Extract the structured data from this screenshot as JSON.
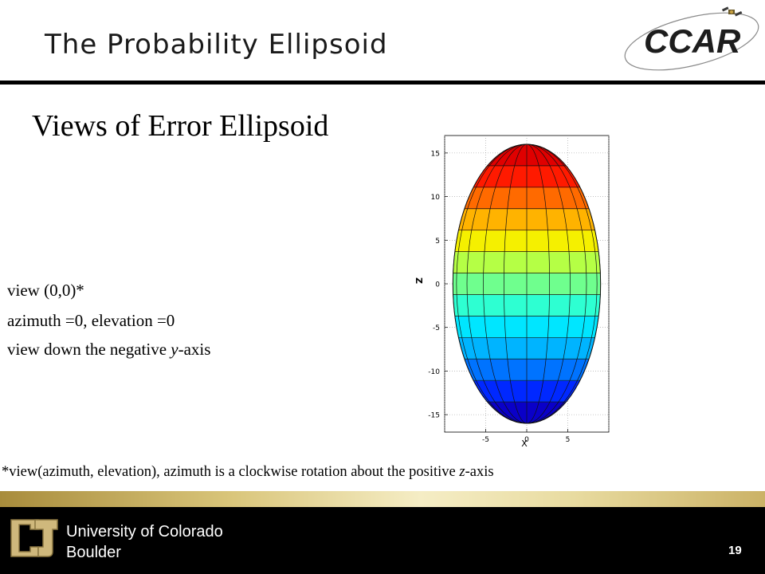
{
  "header": {
    "title": "The Probability Ellipsoid",
    "logo_text": "CCAR"
  },
  "slide": {
    "heading": "Views of Error Ellipsoid",
    "caption": {
      "line1": "view (0,0)*",
      "line2": "azimuth =0, elevation =0",
      "line3_prefix": "view down the negative ",
      "line3_italic": "y",
      "line3_suffix": "-axis"
    },
    "footnote": {
      "prefix": "*view(azimuth, elevation), azimuth is a clockwise rotation about the positive ",
      "italic": "z",
      "suffix": "-axis"
    }
  },
  "footer": {
    "university_line1": "University of Colorado",
    "university_line2": "Boulder",
    "page_number": "19"
  },
  "chart_data": {
    "type": "surface",
    "xlabel": "X",
    "ylabel": "Z",
    "x_ticks": [
      "-5",
      "0",
      "5"
    ],
    "y_ticks": [
      "15",
      "10",
      "5",
      "0",
      "-5",
      "-10",
      "-15"
    ],
    "xlim": [
      -10,
      10
    ],
    "ylim": [
      -17,
      17
    ],
    "ellipse": {
      "x_semi_axis": 9,
      "z_semi_axis": 16
    },
    "colormap": "jet",
    "band_colors": [
      "#0a00c8",
      "#0028ff",
      "#0073ff",
      "#00b4ff",
      "#00e6ff",
      "#2effd2",
      "#6fff8e",
      "#b5ff45",
      "#f5f000",
      "#ffb300",
      "#ff6a00",
      "#ff1a00",
      "#e00000"
    ]
  }
}
